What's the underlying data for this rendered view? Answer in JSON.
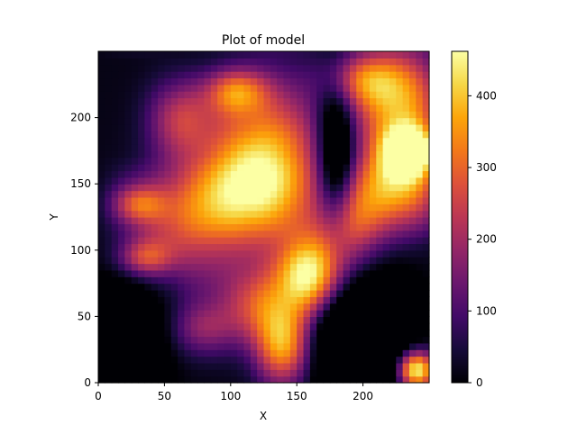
{
  "chart_data": {
    "type": "heatmap",
    "title": "Plot of model",
    "xlabel": "X",
    "ylabel": "Y",
    "colormap": "inferno",
    "xlim": [
      0,
      250
    ],
    "ylim": [
      0,
      250
    ],
    "x_ticks": [
      0,
      50,
      100,
      150,
      200
    ],
    "y_ticks": [
      0,
      50,
      100,
      150,
      200
    ],
    "colorbar": {
      "min": 0,
      "max": 462,
      "ticks": [
        0,
        100,
        200,
        300,
        400
      ]
    },
    "features": [
      {
        "x": 160,
        "y": 80,
        "value": 460,
        "sx": 18,
        "sy": 22
      },
      {
        "x": 130,
        "y": 170,
        "value": 330,
        "sx": 30,
        "sy": 40
      },
      {
        "x": 100,
        "y": 140,
        "value": 260,
        "sx": 28,
        "sy": 30
      },
      {
        "x": 235,
        "y": 175,
        "value": 420,
        "sx": 12,
        "sy": 12
      },
      {
        "x": 225,
        "y": 150,
        "value": 340,
        "sx": 22,
        "sy": 25
      },
      {
        "x": 230,
        "y": 210,
        "value": 330,
        "sx": 22,
        "sy": 30
      },
      {
        "x": 240,
        "y": 10,
        "value": 440,
        "sx": 10,
        "sy": 10
      },
      {
        "x": 105,
        "y": 220,
        "value": 230,
        "sx": 16,
        "sy": 12
      },
      {
        "x": 60,
        "y": 120,
        "value": 180,
        "sx": 25,
        "sy": 30
      },
      {
        "x": 35,
        "y": 95,
        "value": 200,
        "sx": 14,
        "sy": 10
      },
      {
        "x": 30,
        "y": 135,
        "value": 180,
        "sx": 14,
        "sy": 10
      },
      {
        "x": 140,
        "y": 30,
        "value": 340,
        "sx": 15,
        "sy": 20
      },
      {
        "x": 190,
        "y": 120,
        "value": 250,
        "sx": 18,
        "sy": 25
      },
      {
        "x": 80,
        "y": 40,
        "value": 150,
        "sx": 18,
        "sy": 14
      },
      {
        "x": 200,
        "y": 230,
        "value": 220,
        "sx": 20,
        "sy": 15
      },
      {
        "x": 60,
        "y": 200,
        "value": 190,
        "sx": 16,
        "sy": 20
      },
      {
        "x": 120,
        "y": 60,
        "value": 220,
        "sx": 18,
        "sy": 20
      }
    ],
    "dark_regions": [
      {
        "x": 180,
        "y": 170,
        "value": -250,
        "sx": 10,
        "sy": 40
      },
      {
        "x": 195,
        "y": 40,
        "value": -300,
        "sx": 25,
        "sy": 35
      },
      {
        "x": 20,
        "y": 30,
        "value": -200,
        "sx": 20,
        "sy": 30
      }
    ]
  }
}
